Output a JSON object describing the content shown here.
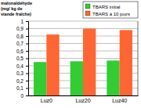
{
  "chart_data": {
    "type": "bar",
    "y_label": "malonaldéhyde\n(mg/ kg de\nviande fraîche)",
    "categories": [
      "Luz0",
      "Luz20",
      "Luz40"
    ],
    "series": [
      {
        "name": "TBARS initial",
        "color": "#33cc33",
        "values": [
          0.45,
          0.46,
          0.47
        ]
      },
      {
        "name": "TBARS à 10 jours",
        "color": "#ff6633",
        "values": [
          0.82,
          0.9,
          0.88
        ]
      }
    ],
    "ylim": [
      0,
      1
    ],
    "yticks": [
      0,
      {
        "value": 0.1,
        "label": "0,1"
      },
      {
        "value": 0.2,
        "label": "0,2"
      },
      {
        "value": 0.3,
        "label": "0,3"
      },
      {
        "value": 0.4,
        "label": "0,4"
      },
      {
        "value": 0.5,
        "label": "0,5"
      },
      {
        "value": 0.6,
        "label": "0,6"
      },
      {
        "value": 0.7,
        "label": "0,7"
      },
      {
        "value": 0.8,
        "label": "0,8"
      },
      {
        "value": 0.9,
        "label": "0,9"
      },
      1
    ],
    "grid": true,
    "legend": "top-right"
  }
}
